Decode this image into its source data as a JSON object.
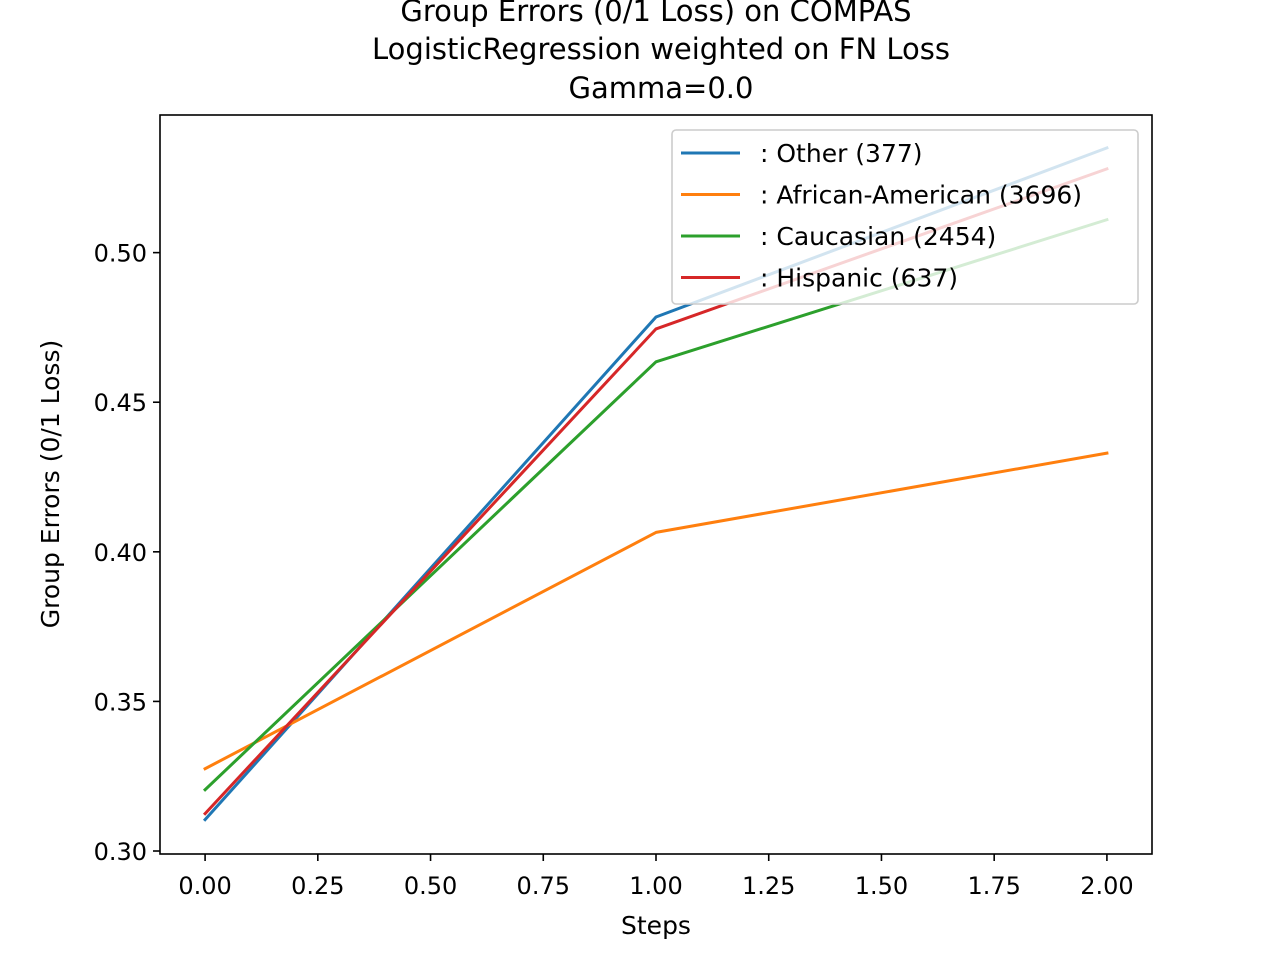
{
  "chart_data": {
    "type": "line",
    "title_lines": [
      "Group Errors (0/1 Loss) on COMPAS",
      "LogisticRegression weighted on FN Loss",
      "Gamma=0.0"
    ],
    "xlabel": "Steps",
    "ylabel": "Group Errors (0/1 Loss)",
    "xlim": [
      -0.1,
      2.1
    ],
    "ylim": [
      0.299,
      0.546
    ],
    "x": [
      0.0,
      1.0,
      2.0
    ],
    "xticks": [
      "0.00",
      "0.25",
      "0.50",
      "0.75",
      "1.00",
      "1.25",
      "1.50",
      "1.75",
      "2.00"
    ],
    "xtick_values": [
      0.0,
      0.25,
      0.5,
      0.75,
      1.0,
      1.25,
      1.5,
      1.75,
      2.0
    ],
    "yticks": [
      "0.30",
      "0.35",
      "0.40",
      "0.45",
      "0.50"
    ],
    "ytick_values": [
      0.3,
      0.35,
      0.4,
      0.45,
      0.5
    ],
    "grid": false,
    "legend_position": "top-right",
    "series": [
      {
        "name": ": Other  (377)",
        "color": "#1f77b4",
        "values": [
          0.3105,
          0.4785,
          0.535
        ]
      },
      {
        "name": ": African-American  (3696)",
        "color": "#ff7f0e",
        "values": [
          0.3275,
          0.4065,
          0.433
        ]
      },
      {
        "name": ": Caucasian  (2454)",
        "color": "#2ca02c",
        "values": [
          0.3205,
          0.4635,
          0.511
        ]
      },
      {
        "name": ": Hispanic  (637)",
        "color": "#d62728",
        "values": [
          0.3125,
          0.4745,
          0.528
        ]
      }
    ]
  }
}
